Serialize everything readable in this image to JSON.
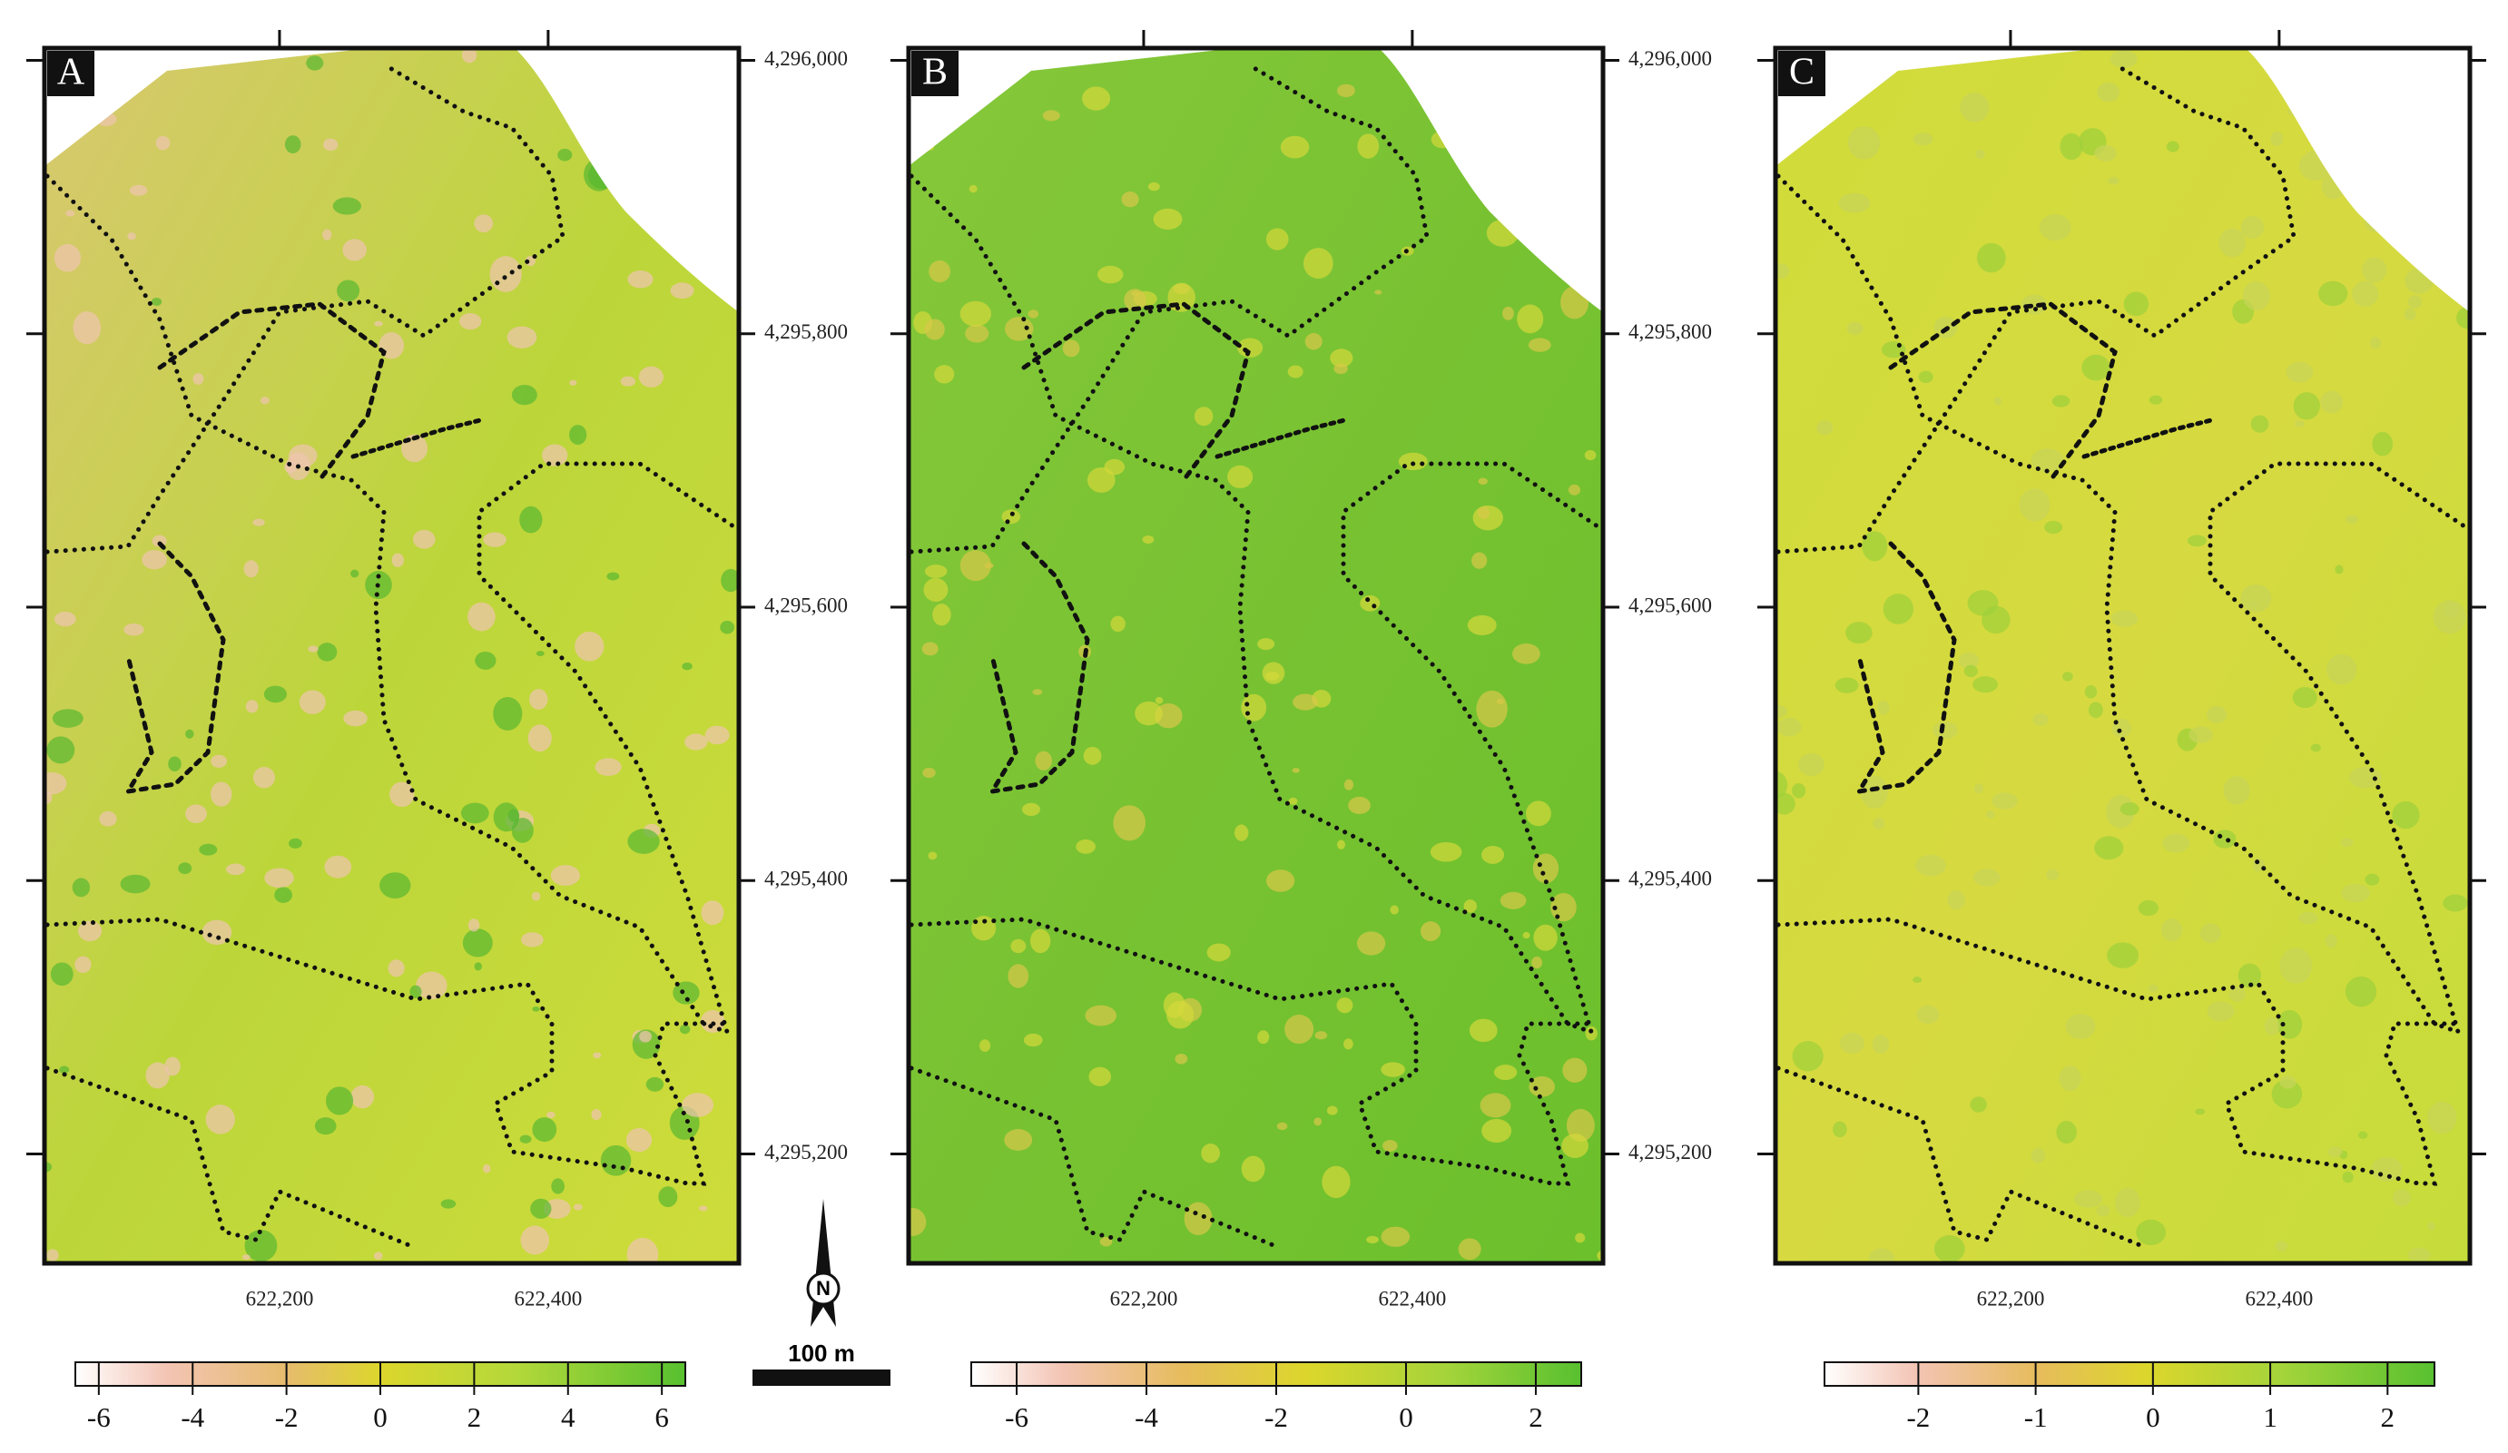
{
  "panels": [
    {
      "label": "A",
      "colorbar": {
        "range": [
          -6.5,
          6.5
        ],
        "ticks": [
          -6,
          -4,
          -2,
          0,
          2,
          4,
          6
        ]
      }
    },
    {
      "label": "B",
      "colorbar": {
        "range": [
          -6.7,
          2.7
        ],
        "ticks": [
          -6,
          -4,
          -2,
          0,
          2
        ]
      }
    },
    {
      "label": "C",
      "colorbar": {
        "range": [
          -2.8,
          2.4
        ],
        "ticks": [
          -2,
          -1,
          0,
          1,
          2
        ]
      }
    }
  ],
  "map": {
    "xlim": [
      622025,
      622542
    ],
    "ylim": [
      4295120,
      4296009
    ],
    "xticks": [
      {
        "value": 622200,
        "label": "622,200"
      },
      {
        "value": 622400,
        "label": "622,400"
      }
    ],
    "yticks": [
      {
        "value": 4296000,
        "label": "4,296,000"
      },
      {
        "value": 4295800,
        "label": "4,295,800"
      },
      {
        "value": 4295600,
        "label": "4,295,600"
      },
      {
        "value": 4295400,
        "label": "4,295,400"
      },
      {
        "value": 4295200,
        "label": "4,295,200"
      }
    ]
  },
  "north_arrow": "N",
  "scale_bar": "100 m"
}
